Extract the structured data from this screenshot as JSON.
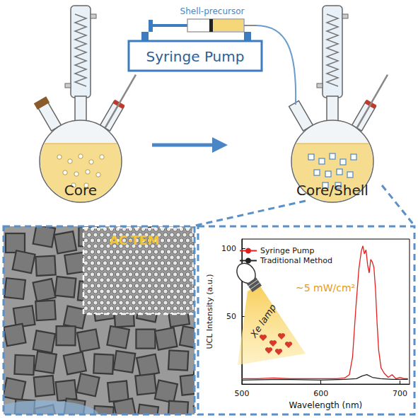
{
  "diagram": {
    "core_label": "Core",
    "core_shell_label": "Core/Shell",
    "pump_label": "Syringe Pump",
    "precursor_label": "Shell-precursor"
  },
  "tem_panel": {
    "inset_label": "AC-TEM"
  },
  "chart_data": {
    "type": "line",
    "x_label": "Wavelength (nm)",
    "y_label": "UCL Intensity (a.u.)",
    "annotations": [
      "~5 mW/cm²",
      "Xe lamp"
    ],
    "xlim": [
      500,
      712
    ],
    "xticks": [
      500,
      600,
      700
    ],
    "ylim": [
      0,
      107
    ],
    "yticks": [
      50,
      100
    ],
    "grid": false,
    "legend": "upper left",
    "series": [
      {
        "name": "Syringe Pump",
        "color": "#e02020",
        "x": [
          500,
          520,
          540,
          560,
          580,
          600,
          620,
          630,
          636,
          640,
          644,
          648,
          651,
          653,
          655,
          657,
          659,
          661,
          663,
          665,
          667,
          669,
          671,
          673,
          676,
          680,
          685,
          690,
          695,
          700,
          705,
          710
        ],
        "values": [
          4,
          4,
          4.5,
          4,
          4,
          4,
          4,
          4.5,
          7,
          20,
          55,
          85,
          98,
          102,
          96,
          99,
          88,
          82,
          92,
          90,
          86,
          70,
          45,
          25,
          12,
          8,
          5,
          7,
          4,
          5,
          4,
          4
        ]
      },
      {
        "name": "Traditional Method",
        "color": "#222222",
        "x": [
          500,
          550,
          600,
          630,
          645,
          652,
          658,
          665,
          675,
          690,
          710
        ],
        "values": [
          3,
          3.5,
          3,
          3.5,
          4,
          6,
          7,
          5,
          4,
          3.5,
          3.5
        ]
      }
    ]
  }
}
